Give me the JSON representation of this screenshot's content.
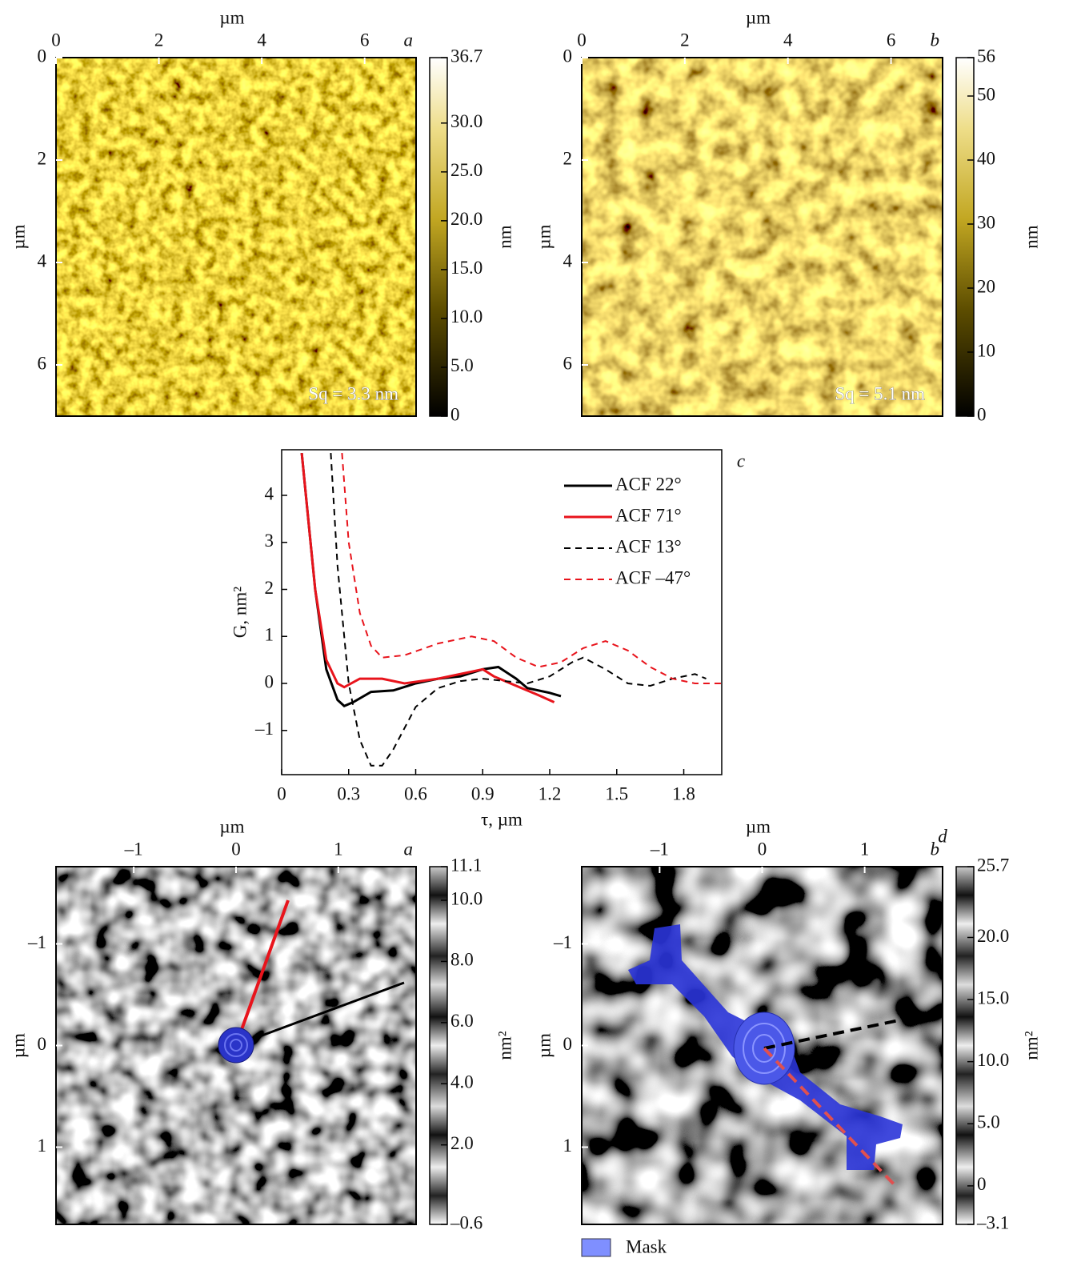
{
  "chart_data": [
    {
      "type": "heatmap",
      "panel_label": "a",
      "x_label": "µm",
      "y_label": "µm",
      "xlim": [
        0,
        7
      ],
      "ylim": [
        0,
        7
      ],
      "xticks": [
        0,
        2,
        4,
        6
      ],
      "yticks": [
        0,
        2,
        4,
        6
      ],
      "annotation": "Sq = 3.3 nm",
      "colorbar": {
        "colormap": "gold",
        "label": "nm",
        "lim": [
          0,
          36.7
        ],
        "ticks": [
          0,
          {
            "value": 5,
            "label": "5.0"
          },
          {
            "value": 10,
            "label": "10.0"
          },
          {
            "value": 15,
            "label": "15.0"
          },
          {
            "value": 20,
            "label": "20.0"
          },
          {
            "value": 25,
            "label": "25.0"
          },
          {
            "value": 30,
            "label": "30.0"
          },
          36.7
        ]
      }
    },
    {
      "type": "heatmap",
      "panel_label": "b",
      "x_label": "µm",
      "y_label": "µm",
      "xlim": [
        0,
        7
      ],
      "ylim": [
        0,
        7
      ],
      "xticks": [
        0,
        2,
        4,
        6
      ],
      "yticks": [
        0,
        2,
        4,
        6
      ],
      "annotation": "Sq = 5.1 nm",
      "colorbar": {
        "colormap": "gold",
        "label": "nm",
        "lim": [
          0,
          56
        ],
        "ticks": [
          0,
          10,
          20,
          30,
          40,
          50,
          56
        ]
      }
    },
    {
      "type": "line",
      "panel_label": "c",
      "x_label": "τ, µm",
      "y_label": "G, nm²",
      "xlim": [
        0,
        1.97
      ],
      "ylim": [
        -1.94,
        4.97
      ],
      "xticks": [
        0,
        0.3,
        0.6,
        0.9,
        1.2,
        1.5,
        1.8
      ],
      "yticks": [
        {
          "value": -1,
          "label": "–1"
        },
        0,
        1,
        2,
        3,
        4
      ],
      "series": [
        {
          "name": "ACF 22°",
          "color": "#000000",
          "line_style": "solid",
          "x": [
            0.09,
            0.15,
            0.2,
            0.25,
            0.28,
            0.32,
            0.4,
            0.5,
            0.6,
            0.7,
            0.8,
            0.9,
            0.97,
            1.05,
            1.1,
            1.2,
            1.25
          ],
          "values": [
            4.9,
            2.0,
            0.3,
            -0.35,
            -0.48,
            -0.4,
            -0.18,
            -0.15,
            0.0,
            0.1,
            0.15,
            0.3,
            0.35,
            0.1,
            -0.1,
            -0.2,
            -0.27
          ]
        },
        {
          "name": "ACF 71°",
          "color": "#e8141c",
          "line_style": "solid",
          "x": [
            0.09,
            0.15,
            0.2,
            0.25,
            0.28,
            0.35,
            0.45,
            0.55,
            0.7,
            0.85,
            0.9,
            0.95,
            1.05,
            1.15,
            1.22
          ],
          "values": [
            4.9,
            2.0,
            0.5,
            0.0,
            -0.08,
            0.1,
            0.1,
            0.0,
            0.1,
            0.25,
            0.3,
            0.15,
            -0.05,
            -0.25,
            -0.4
          ]
        },
        {
          "name": "ACF 13°",
          "color": "#000000",
          "line_style": "dashed",
          "x": [
            0.22,
            0.25,
            0.3,
            0.35,
            0.4,
            0.45,
            0.5,
            0.6,
            0.7,
            0.8,
            0.9,
            1.0,
            1.1,
            1.2,
            1.3,
            1.35,
            1.45,
            1.55,
            1.65,
            1.75,
            1.85,
            1.9
          ],
          "values": [
            4.9,
            2.5,
            0.0,
            -1.2,
            -1.75,
            -1.75,
            -1.4,
            -0.5,
            -0.1,
            0.05,
            0.1,
            0.05,
            0.0,
            0.15,
            0.45,
            0.55,
            0.3,
            0.0,
            -0.05,
            0.1,
            0.2,
            0.1
          ]
        },
        {
          "name": "ACF –47°",
          "color": "#e8141c",
          "line_style": "dashed",
          "x": [
            0.27,
            0.3,
            0.35,
            0.4,
            0.45,
            0.55,
            0.7,
            0.85,
            0.95,
            1.05,
            1.15,
            1.25,
            1.35,
            1.45,
            1.55,
            1.65,
            1.75,
            1.85,
            1.97
          ],
          "values": [
            4.9,
            3.0,
            1.5,
            0.8,
            0.55,
            0.6,
            0.85,
            1.0,
            0.9,
            0.55,
            0.35,
            0.45,
            0.75,
            0.9,
            0.7,
            0.35,
            0.1,
            0.0,
            0.0
          ]
        }
      ]
    },
    {
      "type": "heatmap",
      "panel_label": "a",
      "x_label": "µm",
      "y_label": "µm",
      "xlim": [
        -1.76,
        1.76
      ],
      "ylim": [
        -1.76,
        1.76
      ],
      "xticks": [
        {
          "value": -1,
          "label": "–1"
        },
        0,
        1
      ],
      "yticks": [
        {
          "value": -1,
          "label": "–1"
        },
        0,
        1
      ],
      "colorbar": {
        "colormap": "gray",
        "label": "nm²",
        "lim": [
          -0.6,
          11.1
        ],
        "ticks": [
          {
            "value": -0.6,
            "label": "–0.6"
          },
          {
            "value": 2,
            "label": "2.0"
          },
          {
            "value": 4,
            "label": "4.0"
          },
          {
            "value": 6,
            "label": "6.0"
          },
          {
            "value": 8,
            "label": "8.0"
          },
          {
            "value": 10,
            "label": "10.0"
          },
          11.1
        ]
      }
    },
    {
      "type": "heatmap",
      "panel_label": "b",
      "figure_label": "d",
      "x_label": "µm",
      "y_label": "µm",
      "xlim": [
        -1.76,
        1.76
      ],
      "ylim": [
        -1.76,
        1.76
      ],
      "xticks": [
        {
          "value": -1,
          "label": "–1"
        },
        0,
        1
      ],
      "yticks": [
        {
          "value": -1,
          "label": "–1"
        },
        0,
        1
      ],
      "mask_label": "Mask",
      "colorbar": {
        "colormap": "gray",
        "label": "nm²",
        "lim": [
          -3.1,
          25.7
        ],
        "ticks": [
          {
            "value": -3.1,
            "label": "–3.1"
          },
          0,
          {
            "value": 5,
            "label": "5.0"
          },
          {
            "value": 10,
            "label": "10.0"
          },
          {
            "value": 15,
            "label": "15.0"
          },
          {
            "value": 20,
            "label": "20.0"
          },
          25.7
        ]
      }
    }
  ]
}
